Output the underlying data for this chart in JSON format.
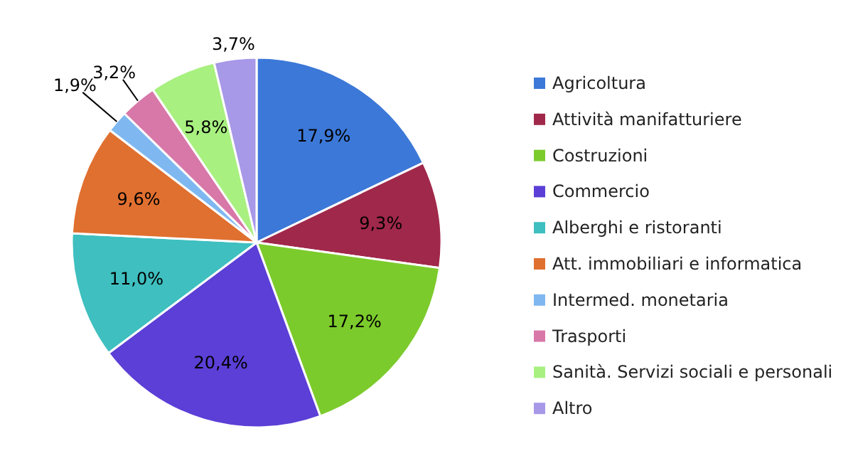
{
  "chart_data": {
    "type": "pie",
    "categories": [
      "Agricoltura",
      "Attività manifatturiere",
      "Costruzioni",
      "Commercio",
      "Alberghi e ristoranti",
      "Att. immobiliari e informatica",
      "Intermed. monetaria",
      "Trasporti",
      "Sanità. Servizi sociali e personali",
      "Altro"
    ],
    "values": [
      17.9,
      9.3,
      17.2,
      20.4,
      11.0,
      9.6,
      1.9,
      3.2,
      5.8,
      3.7
    ],
    "value_labels": [
      "17,9%",
      "9,3%",
      "17,2%",
      "20,4%",
      "11,0%",
      "9,6%",
      "1,9%",
      "3,2%",
      "5,8%",
      "3,7%"
    ],
    "colors": [
      "#3c78d8",
      "#a0284a",
      "#7ccb2c",
      "#5b3fd6",
      "#3fbfbf",
      "#e07030",
      "#7fb8f0",
      "#d878a8",
      "#a8f080",
      "#a898e8"
    ],
    "legend": "right"
  }
}
